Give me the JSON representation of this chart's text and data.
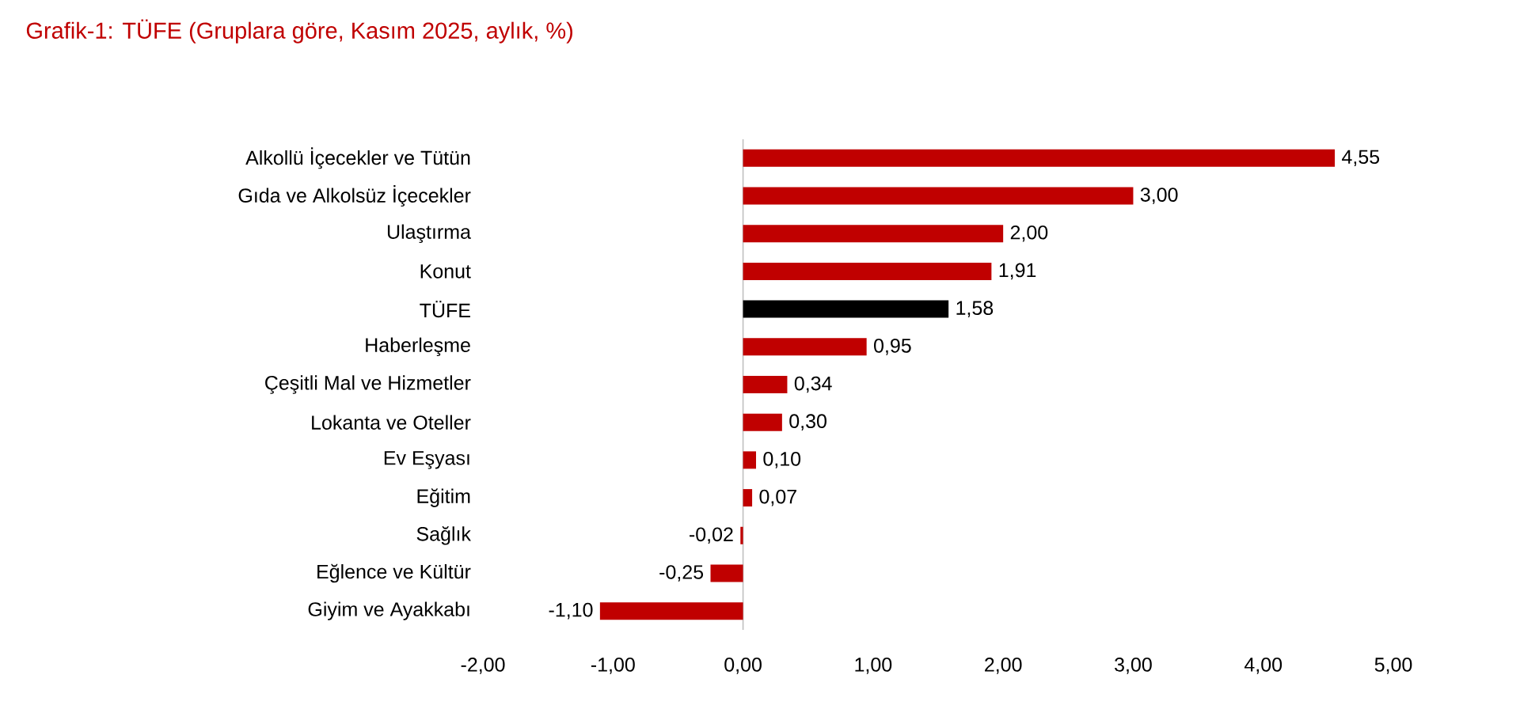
{
  "chart_data": {
    "type": "bar",
    "orientation": "horizontal",
    "title": "Grafik-1: TÜFE (Gruplara göre, Kasım 2025, aylık, %)",
    "categories": [
      "Alkollü İçecekler ve Tütün",
      "Gıda ve Alkolsüz İçecekler",
      "Ulaştırma",
      "Konut",
      "TÜFE",
      "Haberleşme",
      "Çeşitli Mal ve Hizmetler",
      "Lokanta ve Oteller",
      "Ev Eşyası",
      "Eğitim",
      "Sağlık",
      "Eğlence ve Kültür",
      "Giyim ve Ayakkabı"
    ],
    "values": [
      4.55,
      3.0,
      2.0,
      1.91,
      1.58,
      0.95,
      0.34,
      0.3,
      0.1,
      0.07,
      -0.02,
      -0.25,
      -1.1
    ],
    "colors": [
      "#c00000",
      "#c00000",
      "#c00000",
      "#c00000",
      "#000000",
      "#c00000",
      "#c00000",
      "#c00000",
      "#c00000",
      "#c00000",
      "#c00000",
      "#c00000",
      "#c00000"
    ],
    "value_labels": [
      "4,55",
      "3,00",
      "2,00",
      "1,91",
      "1,58",
      "0,95",
      "0,34",
      "0,30",
      "0,10",
      "0,07",
      "-0,02",
      "-0,25",
      "-1,10"
    ],
    "xlim": [
      -2,
      5
    ],
    "xticks": [
      {
        "value": -2,
        "label": "-2,00"
      },
      {
        "value": -1,
        "label": "-1,00"
      },
      {
        "value": 0,
        "label": "0,00"
      },
      {
        "value": 1,
        "label": "1,00"
      },
      {
        "value": 2,
        "label": "2,00"
      },
      {
        "value": 3,
        "label": "3,00"
      },
      {
        "value": 4,
        "label": "4,00"
      },
      {
        "value": 5,
        "label": "5,00"
      }
    ]
  }
}
